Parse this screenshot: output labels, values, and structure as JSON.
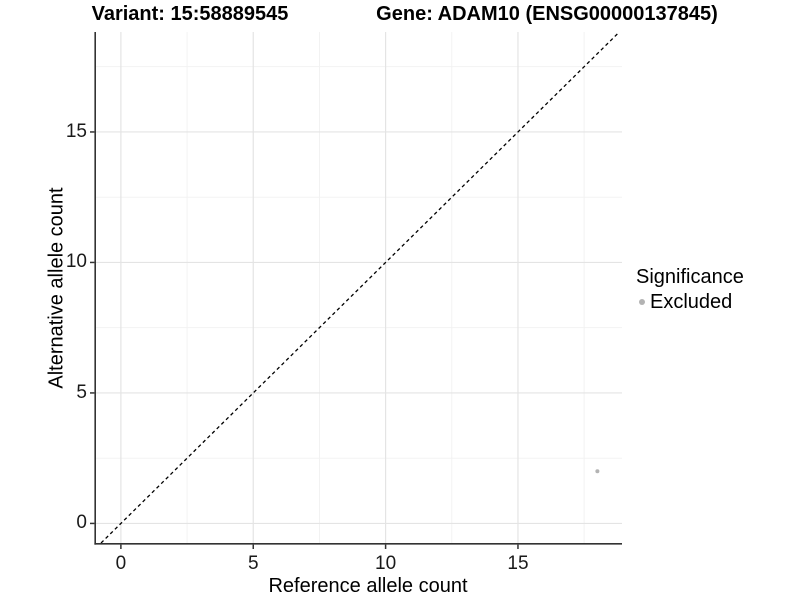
{
  "titles": {
    "variant": "Variant: 15:58889545",
    "gene": "Gene: ADAM10 (ENSG00000137845)"
  },
  "axes": {
    "x_label": "Reference allele count",
    "y_label": "Alternative allele count"
  },
  "legend": {
    "title": "Significance",
    "items": [
      {
        "label": "Excluded",
        "color": "#b3b3b3"
      }
    ]
  },
  "chart_data": {
    "type": "scatter",
    "title": "Variant: 15:58889545 — Gene: ADAM10 (ENSG00000137845)",
    "xlabel": "Reference allele count",
    "ylabel": "Alternative allele count",
    "xlim": [
      -0.94,
      18.93
    ],
    "ylim": [
      -0.75,
      18.83
    ],
    "x_ticks": [
      0,
      5,
      10,
      15
    ],
    "y_ticks": [
      0,
      5,
      10,
      15
    ],
    "x_minor_ticks": [
      2.5,
      7.5,
      12.5,
      17.5
    ],
    "y_minor_ticks": [
      2.5,
      7.5,
      12.5,
      17.5
    ],
    "grid": true,
    "legend_position": "right",
    "series": [
      {
        "name": "Excluded",
        "color": "#b3b3b3",
        "points": [
          {
            "x": 18,
            "y": 2
          }
        ],
        "point_radius": 2
      }
    ],
    "identity_line": {
      "equation": "y = x",
      "style": "dashed",
      "color": "#000000"
    },
    "colors": {
      "grid_major": "#e4e4e4",
      "grid_minor": "#f1f1f1",
      "axis_line": "#333333",
      "tick_text": "#1a1a1a",
      "background": "#ffffff"
    }
  }
}
